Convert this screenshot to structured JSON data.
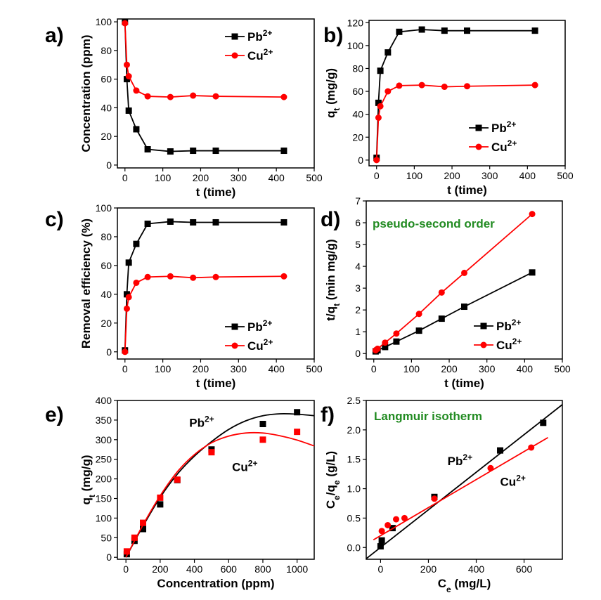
{
  "colors": {
    "pb": "#000000",
    "cu": "#ff0000",
    "annotation": "#228b22"
  },
  "chart_data": [
    {
      "panel_label": "a)",
      "type": "line",
      "xlabel": "t (time)",
      "ylabel": "Concentration (ppm)",
      "xlim": [
        -20,
        500
      ],
      "ylim": [
        -2,
        102
      ],
      "xticks": [
        0,
        100,
        200,
        300,
        400,
        500
      ],
      "yticks": [
        0,
        20,
        40,
        60,
        80,
        100
      ],
      "legend_position": "top-right",
      "series": [
        {
          "name": "Pb2+",
          "label_main": "Pb",
          "label_sup": "2+",
          "color": "#000000",
          "marker": "square",
          "x": [
            0,
            5,
            10,
            30,
            60,
            120,
            180,
            240,
            420
          ],
          "y": [
            100,
            60,
            38,
            25,
            11,
            9.5,
            10,
            10,
            10
          ]
        },
        {
          "name": "Cu2+",
          "label_main": "Cu",
          "label_sup": "2+",
          "color": "#ff0000",
          "marker": "circle",
          "x": [
            0,
            5,
            10,
            30,
            60,
            120,
            180,
            240,
            420
          ],
          "y": [
            99,
            70,
            62,
            52,
            48,
            47.5,
            48.5,
            48,
            47.5
          ]
        }
      ]
    },
    {
      "panel_label": "b)",
      "type": "line",
      "xlabel": "t (time)",
      "ylabel": "qt (mg/g)",
      "ylabel_main": "q",
      "ylabel_sub": "t",
      "ylabel_rest": " (mg/g)",
      "xlim": [
        -20,
        500
      ],
      "ylim": [
        -5,
        122
      ],
      "xticks": [
        0,
        100,
        200,
        300,
        400,
        500
      ],
      "yticks": [
        0,
        20,
        40,
        60,
        80,
        100,
        120
      ],
      "legend_position": "bottom-right",
      "series": [
        {
          "name": "Pb2+",
          "label_main": "Pb",
          "label_sup": "2+",
          "color": "#000000",
          "marker": "square",
          "x": [
            0,
            5,
            10,
            30,
            60,
            120,
            180,
            240,
            420
          ],
          "y": [
            2,
            50,
            78,
            94,
            112,
            114,
            113,
            113,
            113
          ]
        },
        {
          "name": "Cu2+",
          "label_main": "Cu",
          "label_sup": "2+",
          "color": "#ff0000",
          "marker": "circle",
          "x": [
            0,
            5,
            10,
            30,
            60,
            120,
            180,
            240,
            420
          ],
          "y": [
            0,
            37,
            47,
            60,
            65,
            65.5,
            64,
            64.5,
            65.5
          ]
        }
      ]
    },
    {
      "panel_label": "c)",
      "type": "line",
      "xlabel": "t (time)",
      "ylabel": "Removal efficiency (%)",
      "xlim": [
        -20,
        500
      ],
      "ylim": [
        -5,
        100
      ],
      "xticks": [
        0,
        100,
        200,
        300,
        400,
        500
      ],
      "yticks": [
        0,
        20,
        40,
        60,
        80,
        100
      ],
      "legend_position": "bottom-right",
      "series": [
        {
          "name": "Pb2+",
          "label_main": "Pb",
          "label_sup": "2+",
          "color": "#000000",
          "marker": "square",
          "x": [
            0,
            5,
            10,
            30,
            60,
            120,
            180,
            240,
            420
          ],
          "y": [
            1,
            40,
            62,
            75,
            89,
            90.5,
            90,
            90,
            90
          ]
        },
        {
          "name": "Cu2+",
          "label_main": "Cu",
          "label_sup": "2+",
          "color": "#ff0000",
          "marker": "circle",
          "x": [
            0,
            5,
            10,
            30,
            60,
            120,
            180,
            240,
            420
          ],
          "y": [
            0,
            30,
            38,
            48,
            52,
            52.5,
            51.5,
            52,
            52.5
          ]
        }
      ]
    },
    {
      "panel_label": "d)",
      "type": "line",
      "annotation": "pseudo-second order",
      "xlabel": "t (time)",
      "ylabel": "t/qt (min mg/g)",
      "ylabel_main": "t/q",
      "ylabel_sub": "t",
      "ylabel_rest": " (min mg/g)",
      "xlim": [
        -20,
        500
      ],
      "ylim": [
        -0.25,
        7
      ],
      "xticks": [
        0,
        100,
        200,
        300,
        400,
        500
      ],
      "yticks": [
        0,
        1,
        2,
        3,
        4,
        5,
        6,
        7
      ],
      "legend_position": "bottom-right",
      "series": [
        {
          "name": "Pb2+",
          "label_main": "Pb",
          "label_sup": "2+",
          "color": "#000000",
          "marker": "square",
          "x": [
            5,
            10,
            30,
            60,
            120,
            180,
            240,
            420
          ],
          "y": [
            0.1,
            0.15,
            0.3,
            0.55,
            1.05,
            1.6,
            2.15,
            3.72
          ]
        },
        {
          "name": "Cu2+",
          "label_main": "Cu",
          "label_sup": "2+",
          "color": "#ff0000",
          "marker": "circle",
          "x": [
            5,
            10,
            30,
            60,
            120,
            180,
            240,
            420
          ],
          "y": [
            0.15,
            0.22,
            0.5,
            0.92,
            1.82,
            2.8,
            3.7,
            6.4
          ]
        }
      ]
    },
    {
      "panel_label": "e)",
      "type": "scatter",
      "xlabel": "Concentration (ppm)",
      "ylabel": "qt (mg/g)",
      "ylabel_main": "q",
      "ylabel_sub": "t",
      "ylabel_rest": " (mg/g)",
      "xlim": [
        -50,
        1100
      ],
      "ylim": [
        -5,
        400
      ],
      "xticks": [
        0,
        200,
        400,
        600,
        800,
        1000
      ],
      "yticks": [
        0,
        50,
        100,
        150,
        200,
        250,
        300,
        350,
        400
      ],
      "legend_position": "inline",
      "series": [
        {
          "name": "Pb2+",
          "label_main": "Pb",
          "label_sup": "2+",
          "color": "#000000",
          "marker": "square",
          "label_at": [
            370,
            333
          ],
          "x": [
            5,
            50,
            100,
            200,
            300,
            500,
            800,
            1000
          ],
          "y": [
            8,
            42,
            72,
            135,
            197,
            275,
            340,
            370
          ],
          "fit": [
            [
              0,
              0
            ],
            [
              100,
              80
            ],
            [
              200,
              153
            ],
            [
              300,
              212
            ],
            [
              400,
              258
            ],
            [
              500,
              295
            ],
            [
              600,
              326
            ],
            [
              700,
              348
            ],
            [
              800,
              361
            ],
            [
              900,
              366
            ],
            [
              1000,
              365
            ],
            [
              1100,
              361
            ]
          ]
        },
        {
          "name": "Cu2+",
          "label_main": "Cu",
          "label_sup": "2+",
          "color": "#ff0000",
          "marker": "square",
          "label_at": [
            620,
            220
          ],
          "x": [
            5,
            50,
            100,
            200,
            300,
            500,
            800,
            1000
          ],
          "y": [
            15,
            50,
            88,
            152,
            198,
            268,
            300,
            320
          ],
          "fit": [
            [
              0,
              0
            ],
            [
              100,
              83
            ],
            [
              200,
              157
            ],
            [
              300,
              218
            ],
            [
              400,
              262
            ],
            [
              500,
              292
            ],
            [
              600,
              309
            ],
            [
              700,
              317
            ],
            [
              800,
              317
            ],
            [
              900,
              310
            ],
            [
              1000,
              299
            ],
            [
              1100,
              284
            ]
          ]
        }
      ]
    },
    {
      "panel_label": "f)",
      "type": "scatter",
      "annotation": "Langmuir isotherm",
      "xlabel": "Ce (mg/L)",
      "xlabel_main": "C",
      "xlabel_sub": "e",
      "xlabel_rest": " (mg/L)",
      "ylabel": "Ce/qe (g/L)",
      "ylabel_parts": [
        "C",
        "e",
        "/q",
        "e",
        " (g/L)"
      ],
      "xlim": [
        -60,
        760
      ],
      "ylim": [
        -0.2,
        2.5
      ],
      "xticks": [
        0,
        200,
        400,
        600
      ],
      "yticks": [
        0.0,
        0.5,
        1.0,
        1.5,
        2.0,
        2.5
      ],
      "ytick_labels": [
        "0.0",
        "0.5",
        "1.0",
        "1.5",
        "2.0",
        "2.5"
      ],
      "legend_position": "inline",
      "series": [
        {
          "name": "Pb2+",
          "label_main": "Pb",
          "label_sup": "2+",
          "color": "#000000",
          "marker": "square",
          "label_at": [
            280,
            1.4
          ],
          "x": [
            0,
            5,
            50,
            225,
            500,
            680
          ],
          "y": [
            0.02,
            0.12,
            0.33,
            0.86,
            1.65,
            2.12
          ],
          "fit": [
            [
              -60,
              -0.19
            ],
            [
              760,
              2.43
            ]
          ]
        },
        {
          "name": "Cu2+",
          "label_main": "Cu",
          "label_sup": "2+",
          "color": "#ff0000",
          "marker": "circle",
          "label_at": [
            500,
            1.05
          ],
          "x": [
            5,
            30,
            65,
            100,
            225,
            460,
            630
          ],
          "y": [
            0.28,
            0.38,
            0.48,
            0.5,
            0.83,
            1.35,
            1.7
          ],
          "fit": [
            [
              -30,
              0.13
            ],
            [
              700,
              1.87
            ]
          ]
        }
      ]
    }
  ]
}
